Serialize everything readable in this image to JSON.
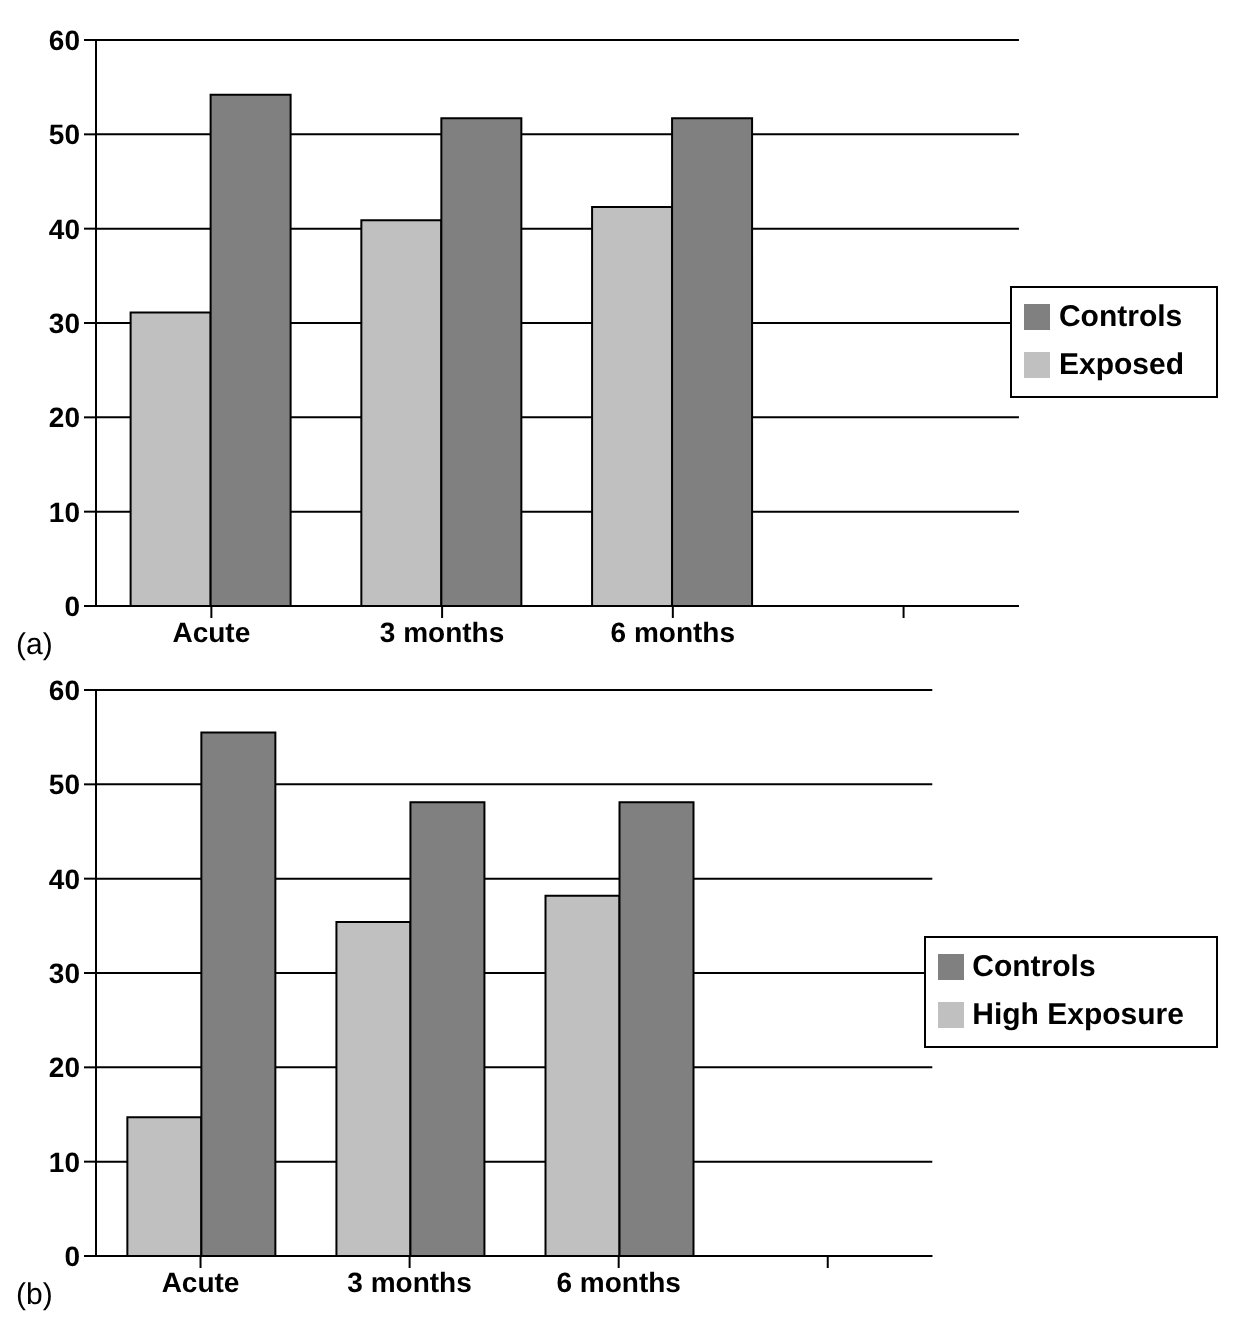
{
  "chart_data": [
    {
      "type": "bar",
      "categories": [
        "Acute",
        "3 months",
        "6 months",
        null
      ],
      "series": [
        {
          "name": "Exposed",
          "color": "#c0c0c0",
          "values": [
            31.1,
            40.9,
            42.3,
            null
          ]
        },
        {
          "name": "Controls",
          "color": "#808080",
          "values": [
            54.2,
            51.7,
            51.7,
            null
          ]
        }
      ],
      "ylim": [
        0,
        60
      ],
      "yticks": [
        0,
        10,
        20,
        30,
        40,
        50,
        60
      ],
      "grid": "y",
      "legend": "right",
      "annotations": [
        "(a)"
      ]
    },
    {
      "type": "bar",
      "categories": [
        "Acute",
        "3 months",
        "6 months",
        null
      ],
      "series": [
        {
          "name": "High Exposure",
          "color": "#c0c0c0",
          "values": [
            14.7,
            35.4,
            38.2,
            null
          ]
        },
        {
          "name": "Controls",
          "color": "#808080",
          "values": [
            55.5,
            48.1,
            48.1,
            null
          ]
        }
      ],
      "ylim": [
        0,
        60
      ],
      "yticks": [
        0,
        10,
        20,
        30,
        40,
        50,
        60
      ],
      "grid": "y",
      "legend": "right",
      "annotations": [
        "(b)"
      ]
    }
  ]
}
